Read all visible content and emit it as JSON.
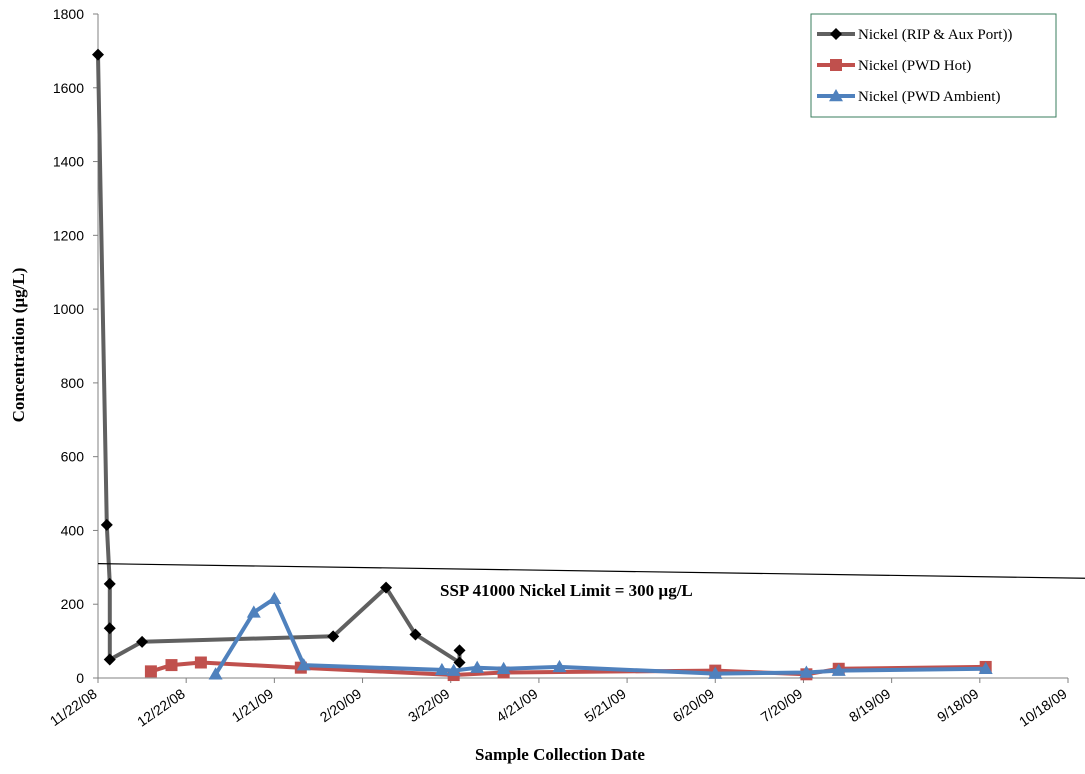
{
  "chart_data": {
    "type": "line",
    "xlabel": "Sample Collection Date",
    "ylabel": "Concentration (µg/L)",
    "x_ticks": [
      "11/22/08",
      "12/22/08",
      "1/21/09",
      "2/20/09",
      "3/22/09",
      "4/21/09",
      "5/21/09",
      "6/20/09",
      "7/20/09",
      "8/19/09",
      "9/18/09",
      "10/18/09"
    ],
    "xlim": [
      "2008-11-22",
      "2009-10-18"
    ],
    "ylim": [
      0,
      1800
    ],
    "y_ticks": [
      0,
      200,
      400,
      600,
      800,
      1000,
      1200,
      1400,
      1600,
      1800
    ],
    "grid": false,
    "legend_position": "top-right",
    "series": [
      {
        "name": "Nickel (RIP & Aux Port))",
        "color": "#606060",
        "marker": "diamond",
        "marker_color": "#000000",
        "points": [
          {
            "x": "2008-11-22",
            "y": 1690
          },
          {
            "x": "2008-11-25",
            "y": 415
          },
          {
            "x": "2008-11-26",
            "y": 255
          },
          {
            "x": "2008-11-26",
            "y": 135
          },
          {
            "x": "2008-11-26",
            "y": 50
          },
          {
            "x": "2008-12-07",
            "y": 98
          },
          {
            "x": "2009-02-10",
            "y": 113
          },
          {
            "x": "2009-02-28",
            "y": 245
          },
          {
            "x": "2009-03-10",
            "y": 118
          },
          {
            "x": "2009-03-25",
            "y": 42
          },
          {
            "x": "2009-03-25",
            "y": 75
          }
        ]
      },
      {
        "name": "Nickel (PWD Hot)",
        "color": "#c0504d",
        "marker": "square",
        "marker_color": "#c0504d",
        "points": [
          {
            "x": "2008-12-10",
            "y": 18
          },
          {
            "x": "2008-12-17",
            "y": 35
          },
          {
            "x": "2008-12-27",
            "y": 42
          },
          {
            "x": "2009-01-30",
            "y": 28
          },
          {
            "x": "2009-03-23",
            "y": 8
          },
          {
            "x": "2009-04-09",
            "y": 15
          },
          {
            "x": "2009-06-20",
            "y": 20
          },
          {
            "x": "2009-07-21",
            "y": 10
          },
          {
            "x": "2009-08-01",
            "y": 25
          },
          {
            "x": "2009-09-20",
            "y": 30
          }
        ]
      },
      {
        "name": "Nickel (PWD Ambient)",
        "color": "#4f81bd",
        "marker": "triangle",
        "marker_color": "#4f81bd",
        "points": [
          {
            "x": "2009-01-01",
            "y": 10
          },
          {
            "x": "2009-01-14",
            "y": 178
          },
          {
            "x": "2009-01-21",
            "y": 215
          },
          {
            "x": "2009-01-31",
            "y": 35
          },
          {
            "x": "2009-03-19",
            "y": 22
          },
          {
            "x": "2009-03-23",
            "y": 20
          },
          {
            "x": "2009-03-31",
            "y": 28
          },
          {
            "x": "2009-04-09",
            "y": 25
          },
          {
            "x": "2009-04-28",
            "y": 30
          },
          {
            "x": "2009-06-20",
            "y": 12
          },
          {
            "x": "2009-07-21",
            "y": 15
          },
          {
            "x": "2009-08-01",
            "y": 20
          },
          {
            "x": "2009-09-20",
            "y": 25
          }
        ]
      }
    ],
    "annotations": [
      {
        "text": "SSP 41000 Nickel Limit =  300 µg/L",
        "line": {
          "x0": "2008-11-22",
          "y0": 310,
          "x1": "2009-10-28",
          "y1": 270
        }
      }
    ]
  }
}
